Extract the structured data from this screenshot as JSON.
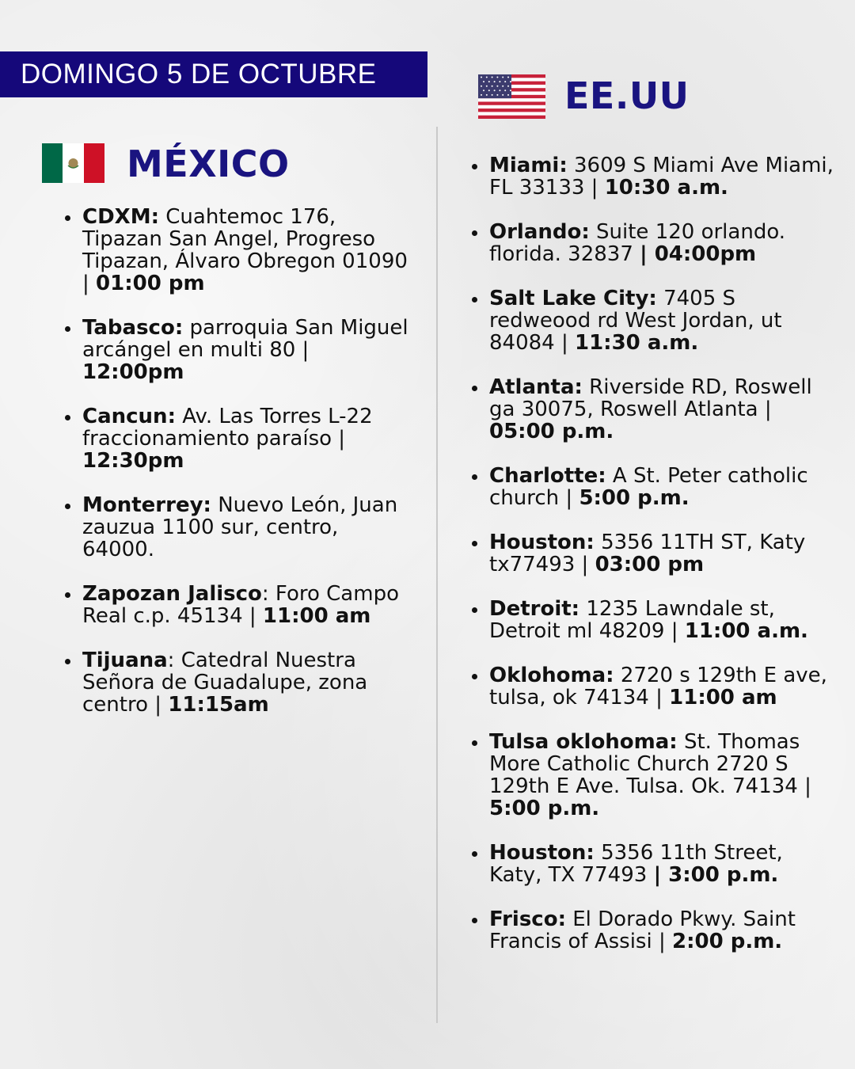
{
  "banner": "DOMINGO 5 DE OCTUBRE",
  "colors": {
    "navy": "#15087a",
    "heading": "#1a1480"
  },
  "mexico": {
    "title": "MÉXICO",
    "flag_icon": "mexico-flag",
    "items": [
      {
        "label": "CDXM:",
        "text": " Cuahtemoc 176, Tipazan San Angel, Progreso Tipazan, Álvaro Obregon 01090 | ",
        "time": "01:00 pm"
      },
      {
        "label": "Tabasco:",
        "text": " parroquia San Miguel arcángel en multi 80 | ",
        "time": "12:00pm"
      },
      {
        "label": "Cancun:",
        "text": " Av. Las Torres L-22 fraccionamiento paraíso | ",
        "time": "12:30pm"
      },
      {
        "label": "Monterrey:",
        "text": " Nuevo León, Juan zauzua 1100 sur, centro, 64000.",
        "time": ""
      },
      {
        "label": "Zapozan Jalisco",
        "text": ": Foro Campo Real c.p. 45134 | ",
        "time": "11:00 am"
      },
      {
        "label": "Tijuana",
        "text": ": Catedral Nuestra Señora de Guadalupe, zona centro | ",
        "time": "11:15am"
      }
    ]
  },
  "usa": {
    "title": "EE.UU",
    "flag_icon": "usa-flag",
    "items": [
      {
        "label": "Miami:",
        "text": " 3609 S Miami Ave Miami, FL 33133 | ",
        "time": "10:30 a.m."
      },
      {
        "label": "Orlando:",
        "text": " Suite 120 orlando. florida. 32837 ",
        "time": "| 04:00pm"
      },
      {
        "label": "Salt Lake City:",
        "text": " 7405 S redweood rd West Jordan, ut 84084 | ",
        "time": "11:30 a.m."
      },
      {
        "label": "Atlanta:",
        "text": " Riverside RD, Roswell ga 30075, Roswell Atlanta | ",
        "time": "05:00 p.m."
      },
      {
        "label": "Charlotte:",
        "text": " A St. Peter catholic church | ",
        "time": "5:00 p.m."
      },
      {
        "label": "Houston:",
        "text": " 5356 11TH ST, Katy tx77493 | ",
        "time": "03:00 pm"
      },
      {
        "label": "Detroit:",
        "text": " 1235 Lawndale st, Detroit ml 48209 | ",
        "time": "11:00 a.m."
      },
      {
        "label": "Oklohoma:",
        "text": " 2720 s 129th E ave, tulsa, ok 74134 | ",
        "time": "11:00 am"
      },
      {
        "label": "Tulsa oklohoma:",
        "text": " St. Thomas More Catholic Church 2720 S 129th E Ave. Tulsa. Ok. 74134 | ",
        "time": "5:00 p.m."
      },
      {
        "label": "Houston:",
        "text": " 5356 11th Street, Katy, TX 77493 ",
        "time": "| 3:00 p.m."
      },
      {
        "label": "Frisco:",
        "text": " El Dorado Pkwy. Saint Francis of Assisi | ",
        "time": "2:00 p.m."
      }
    ]
  }
}
